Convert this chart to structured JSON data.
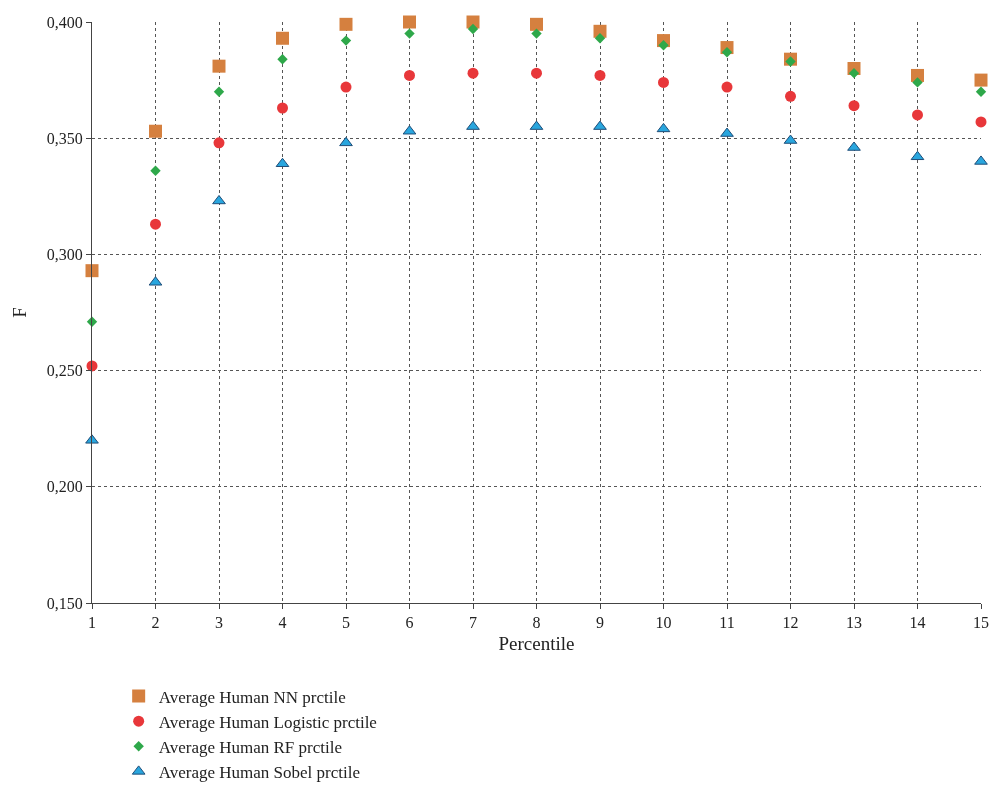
{
  "chart_data": {
    "type": "scatter",
    "xlabel": "Percentile",
    "ylabel": "F",
    "x": [
      1,
      2,
      3,
      4,
      5,
      6,
      7,
      8,
      9,
      10,
      11,
      12,
      13,
      14,
      15
    ],
    "series": [
      {
        "name": "Average Human NN prctile",
        "color": "#d5803f",
        "marker": "square",
        "values": [
          0.293,
          0.353,
          0.381,
          0.393,
          0.399,
          0.4,
          0.4,
          0.399,
          0.396,
          0.392,
          0.389,
          0.384,
          0.38,
          0.377,
          0.375
        ]
      },
      {
        "name": "Average Human Logistic prctile",
        "color": "#e8373a",
        "marker": "circle",
        "values": [
          0.252,
          0.313,
          0.348,
          0.363,
          0.372,
          0.377,
          0.378,
          0.378,
          0.377,
          0.374,
          0.372,
          0.368,
          0.364,
          0.36,
          0.357
        ]
      },
      {
        "name": "Average Human RF prctile",
        "color": "#2ea84a",
        "marker": "diamond",
        "values": [
          0.271,
          0.336,
          0.37,
          0.384,
          0.392,
          0.395,
          0.397,
          0.395,
          0.393,
          0.39,
          0.387,
          0.383,
          0.378,
          0.374,
          0.37
        ]
      },
      {
        "name": "Average Human Sobel prctile",
        "color": "#29a6de",
        "marker": "triangle",
        "values": [
          0.22,
          0.288,
          0.323,
          0.339,
          0.348,
          0.353,
          0.355,
          0.355,
          0.355,
          0.354,
          0.352,
          0.349,
          0.346,
          0.342,
          0.34
        ]
      }
    ],
    "xlim": [
      1,
      15
    ],
    "xticks": [
      1,
      2,
      3,
      4,
      5,
      6,
      7,
      8,
      9,
      10,
      11,
      12,
      13,
      14,
      15
    ],
    "ylim": [
      0.15,
      0.4
    ],
    "yticks": [
      {
        "value": 0.15,
        "label": "0,150"
      },
      {
        "value": 0.2,
        "label": "0,200"
      },
      {
        "value": 0.25,
        "label": "0,250"
      },
      {
        "value": 0.3,
        "label": "0,300"
      },
      {
        "value": 0.35,
        "label": "0,350"
      },
      {
        "value": 0.4,
        "label": "0,400"
      }
    ],
    "grid": true,
    "legend": "bottom left"
  }
}
